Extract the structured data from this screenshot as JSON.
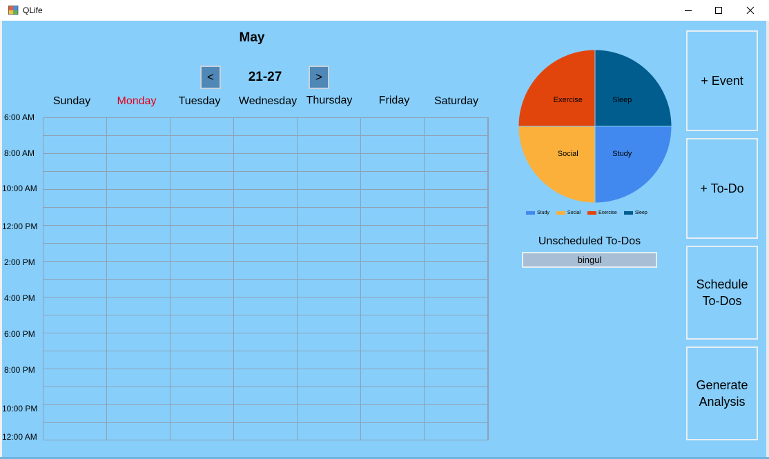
{
  "window": {
    "title": "QLife",
    "icon": "windows-form-icon",
    "controls": [
      "minimize-icon",
      "maximize-icon",
      "close-icon"
    ]
  },
  "calendar": {
    "month": "May",
    "prev_label": "<",
    "next_label": ">",
    "week_range": "21-27",
    "days": [
      {
        "label": "Sunday",
        "today": false
      },
      {
        "label": "Monday",
        "today": true
      },
      {
        "label": "Tuesday",
        "today": false
      },
      {
        "label": "Wednesday",
        "today": false
      },
      {
        "label": "Thursday",
        "today": false
      },
      {
        "label": "Friday",
        "today": false
      },
      {
        "label": "Saturday",
        "today": false
      }
    ],
    "time_labels": [
      "6:00 AM",
      "8:00 AM",
      "10:00 AM",
      "12:00 PM",
      "2:00 PM",
      "4:00 PM",
      "6:00 PM",
      "8:00 PM",
      "10:00 PM",
      "12:00 AM"
    ],
    "colors": {
      "today": "#e0001b",
      "nav_button": "#4f87b6",
      "background": "#87cefa"
    }
  },
  "chart_data": {
    "type": "pie",
    "slices": [
      {
        "label": "Study",
        "value": 25,
        "color": "#4189ee"
      },
      {
        "label": "Social",
        "value": 25,
        "color": "#fbb03b"
      },
      {
        "label": "Exercise",
        "value": 25,
        "color": "#e2450c"
      },
      {
        "label": "Sleep",
        "value": 25,
        "color": "#005d8e"
      }
    ],
    "legend": [
      "Study",
      "Social",
      "Exercise",
      "Sleep"
    ],
    "legend_position": "bottom"
  },
  "todos": {
    "title": "Unscheduled To-Dos",
    "items": [
      "bingul"
    ]
  },
  "actions": {
    "add_event": "+ Event",
    "add_todo": "+ To-Do",
    "schedule_todos": "Schedule To-Dos",
    "generate_analysis": "Generate Analysis"
  }
}
